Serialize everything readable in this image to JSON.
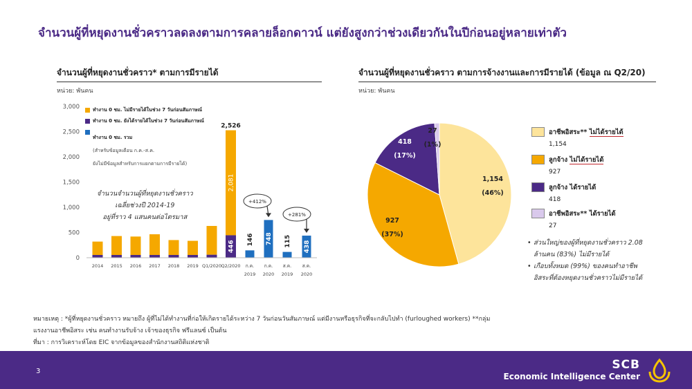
{
  "title": "จำนวนผู้ที่หยุดงานชั่วคราวลดลงตามการคลายล็อกดาวน์ แต่ยังสูงกว่าช่วงเดียวกันในปีก่อนอยู่หลายเท่าตัว",
  "left_panel": {
    "title": "จำนวนผู้ที่หยุดงานชั่วคราว* ตามการมีรายได้",
    "unit": "หน่วย: พันคน",
    "legend": [
      {
        "label": "ทำงาน 0 ชม. ไม่มีรายได้ในช่วง 7 วันก่อนสัมภาษณ์",
        "color": "#f5a800"
      },
      {
        "label": "ทำงาน 0 ชม. ยังได้รายได้ในช่วง 7 วันก่อนสัมภาษณ์",
        "color": "#4b2a86"
      },
      {
        "label": "ทำงาน 0 ชม. รวม",
        "note1": "(สำหรับข้อมูลเดือน ก.ค.-ส.ค.",
        "note2": "ยังไม่มีข้อมูลสำหรับการแยกตามการมีรายได้)",
        "color": "#1f6fbf"
      }
    ],
    "annotation": [
      "จำนวนจำนวนผู้ที่หยุดงานชั่วคราว",
      "เฉลี่ยช่วงปี 2014-19",
      "อยู่ที่ราว 4 แสนคนต่อไตรมาส"
    ],
    "callouts": [
      "+412%",
      "+281%"
    ]
  },
  "chart_data": [
    {
      "type": "bar",
      "title": "จำนวนผู้ที่หยุดงานชั่วคราว* ตามการมีรายได้",
      "ylabel": "หน่วย: พันคน",
      "ylim": [
        0,
        3000
      ],
      "yticks": [
        "3,000",
        "2,500",
        "2,000",
        "1,500",
        "1,000",
        "500",
        "0"
      ],
      "categories": [
        "2014",
        "2015",
        "2016",
        "2017",
        "2018",
        "2019",
        "Q1/2020",
        "Q2/2020"
      ],
      "series": [
        {
          "name": "ทำงาน 0 ชม. ไม่มีรายได้ในช่วง 7 วันก่อนสัมภาษณ์",
          "values": [
            265,
            375,
            365,
            410,
            295,
            280,
            570,
            2081
          ]
        },
        {
          "name": "ทำงาน 0 ชม. ยังได้รายได้ในช่วง 7 วันก่อนสัมภาษณ์",
          "values": [
            55,
            55,
            55,
            55,
            55,
            55,
            60,
            446
          ]
        }
      ],
      "total_labels": {
        "Q2/2020": "2,526"
      },
      "segment_labels": {
        "Q2/2020": [
          "2,081",
          "446"
        ]
      },
      "monthly": {
        "series_name": "ทำงาน 0 ชม. รวม",
        "categories": [
          [
            "ก.ค.",
            "2019"
          ],
          [
            "ก.ค.",
            "2020"
          ],
          [
            "ส.ค.",
            "2019"
          ],
          [
            "ส.ค.",
            "2020"
          ]
        ],
        "values": [
          146,
          748,
          115,
          438
        ],
        "labels": [
          "146",
          "748",
          "115",
          "438"
        ]
      }
    },
    {
      "type": "pie",
      "title": "จำนวนผู้ที่หยุดงานชั่วคราว ตามการจ้างงานและการมีรายได้ (ข้อมูล ณ Q2/20)",
      "unit": "หน่วย: พันคน",
      "slices": [
        {
          "name": "อาชีพอิสระ** ไม่ได้รายได้",
          "value": 1154,
          "label": "1,154",
          "pct": "(46%)",
          "color": "#fde49b"
        },
        {
          "name": "ลูกจ้าง ไม่ได้รายได้",
          "value": 927,
          "label": "927",
          "pct": "(37%)",
          "color": "#f5a800"
        },
        {
          "name": "ลูกจ้าง ได้รายได้",
          "value": 418,
          "label": "418",
          "pct": "(17%)",
          "color": "#4b2a86"
        },
        {
          "name": "อาชีพอิสระ** ได้รายได้",
          "value": 27,
          "label": "27",
          "pct": "(1%)",
          "color": "#d9c9ec"
        }
      ]
    }
  ],
  "right_panel": {
    "title": "จำนวนผู้ที่หยุดงานชั่วคราว ตามการจ้างงานและการมีรายได้ (ข้อมูล ณ Q2/20)",
    "unit": "หน่วย: พันคน",
    "legend": [
      {
        "prefix": "อาชีพอิสระ** ",
        "emph": "ไม่ได้รายได้",
        "value": "1,154",
        "color": "#fde49b"
      },
      {
        "prefix": "ลูกจ้าง ",
        "emph": "ไม่ได้รายได้",
        "value": "927",
        "color": "#f5a800"
      },
      {
        "prefix": "ลูกจ้าง ได้รายได้",
        "emph": "",
        "value": "418",
        "color": "#4b2a86"
      },
      {
        "prefix": "อาชีพอิสระ** ได้รายได้",
        "emph": "",
        "value": "27",
        "color": "#d9c9ec"
      }
    ],
    "bullets": [
      [
        "ส่วนใหญ่ของผู้ที่หยุดงานชั่วคราว 2.08",
        "ล้านคน (83%) ไม่มีรายได้"
      ],
      [
        "เกือบทั้งหมด (99%) ของคนทำอาชีพ",
        "อิสระที่ต้องหยุดงานชั่วคราวไม่มีรายได้"
      ]
    ]
  },
  "footnotes": [
    "หมายเหตุ : *ผู้ที่หยุดงานชั่วคราว หมายถึง ผู้ที่ไม่ได้ทำงานที่ก่อให้เกิดรายได้ระหว่าง 7 วันก่อนวันสัมภาษณ์ แต่มีงานหรือธุรกิจที่จะกลับไปทำ (furloughed workers) **กลุ่ม",
    "แรงงานอาชีพอิสระ เช่น คนทำงานรับจ้าง เจ้าของธุรกิจ ฟรีแลนซ์ เป็นต้น",
    "ที่มา : การวิเคราะห์โดย EIC จากข้อมูลของสำนักงานสถิติแห่งชาติ"
  ],
  "footer": {
    "page_number": "3",
    "brand_name": "SCB",
    "brand_sub": "Economic Intelligence Center"
  }
}
